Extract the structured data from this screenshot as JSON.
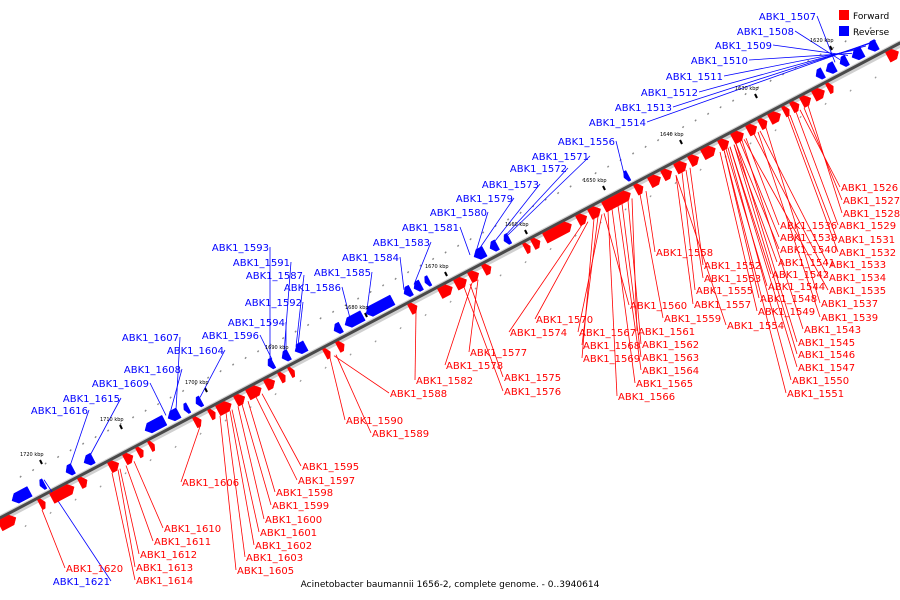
{
  "caption": "Acinetobacter baumannii 1656-2, complete genome. - 0..3940614",
  "colors": {
    "forward": "#ff0000",
    "reverse": "#0000ff",
    "backbone": "#555555"
  },
  "legend": [
    {
      "label": "Forward",
      "color": "#ff0000"
    },
    {
      "label": "Reverse",
      "color": "#0000ff"
    }
  ],
  "ticks": [
    "1620 kbp",
    "1630 kbp",
    "1640 kbp",
    "1650 kbp",
    "1660 kbp",
    "1670 kbp",
    "1680 kbp",
    "1690 kbp",
    "1700 kbp",
    "1710 kbp",
    "1720 kbp"
  ],
  "reverse_labels": [
    "ABK1_1507",
    "ABK1_1508",
    "ABK1_1509",
    "ABK1_1510",
    "ABK1_1511",
    "ABK1_1512",
    "ABK1_1513",
    "ABK1_1514",
    "ABK1_1556",
    "ABK1_1571",
    "ABK1_1572",
    "ABK1_1573",
    "ABK1_1579",
    "ABK1_1580",
    "ABK1_1581",
    "ABK1_1583",
    "ABK1_1584",
    "ABK1_1585",
    "ABK1_1586",
    "ABK1_1593",
    "ABK1_1591",
    "ABK1_1587",
    "ABK1_1592",
    "ABK1_1594",
    "ABK1_1596",
    "ABK1_1607",
    "ABK1_1604",
    "ABK1_1608",
    "ABK1_1609",
    "ABK1_1615",
    "ABK1_1616",
    "ABK1_1621"
  ],
  "forward_labels": [
    "ABK1_1526",
    "ABK1_1527",
    "ABK1_1528",
    "ABK1_1529",
    "ABK1_1531",
    "ABK1_1532",
    "ABK1_1533",
    "ABK1_1534",
    "ABK1_1535",
    "ABK1_1536",
    "ABK1_1538",
    "ABK1_1540",
    "ABK1_1541",
    "ABK1_1542",
    "ABK1_1544",
    "ABK1_1537",
    "ABK1_1539",
    "ABK1_1548",
    "ABK1_1549",
    "ABK1_1543",
    "ABK1_1545",
    "ABK1_1546",
    "ABK1_1547",
    "ABK1_1550",
    "ABK1_1551",
    "ABK1_1552",
    "ABK1_1553",
    "ABK1_1555",
    "ABK1_1557",
    "ABK1_1554",
    "ABK1_1558",
    "ABK1_1560",
    "ABK1_1559",
    "ABK1_1561",
    "ABK1_1562",
    "ABK1_1563",
    "ABK1_1564",
    "ABK1_1565",
    "ABK1_1566",
    "ABK1_1567",
    "ABK1_1568",
    "ABK1_1569",
    "ABK1_1570",
    "ABK1_1574",
    "ABK1_1577",
    "ABK1_1578",
    "ABK1_1575",
    "ABK1_1576",
    "ABK1_1582",
    "ABK1_1588",
    "ABK1_1590",
    "ABK1_1589",
    "ABK1_1595",
    "ABK1_1597",
    "ABK1_1598",
    "ABK1_1599",
    "ABK1_1600",
    "ABK1_1601",
    "ABK1_1602",
    "ABK1_1603",
    "ABK1_1605",
    "ABK1_1606",
    "ABK1_1610",
    "ABK1_1611",
    "ABK1_1612",
    "ABK1_1613",
    "ABK1_1614",
    "ABK1_1620"
  ]
}
